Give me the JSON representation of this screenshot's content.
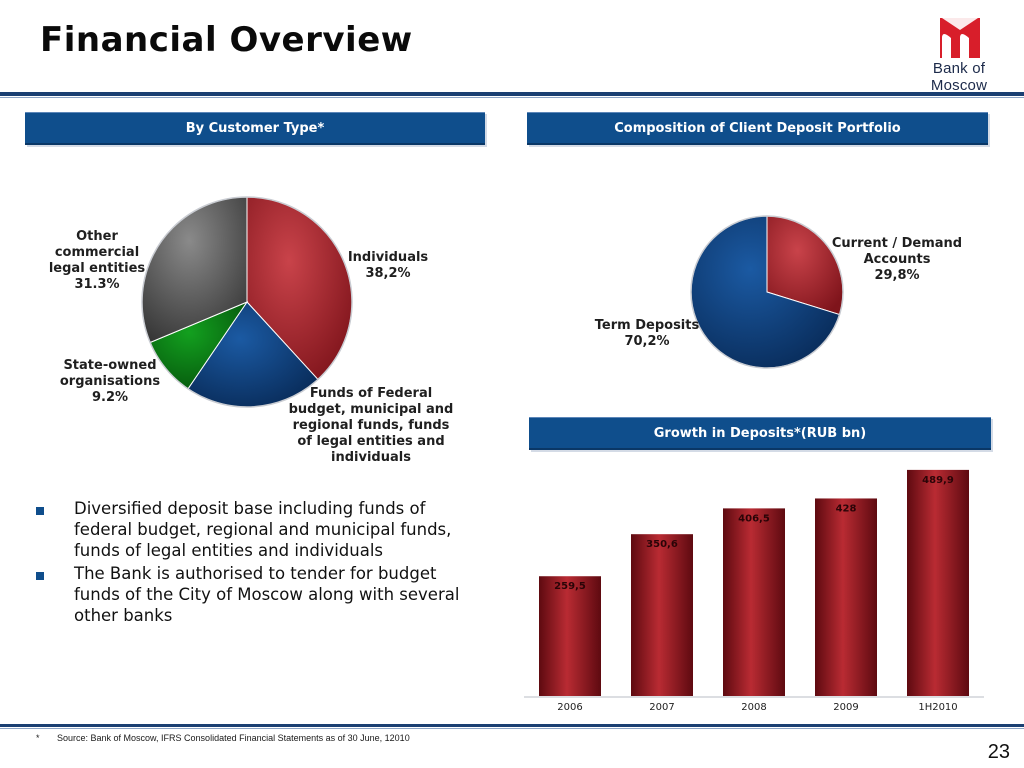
{
  "title": "Financial Overview",
  "logo": {
    "text": "Bank of Moscow",
    "color": "#d81e2a"
  },
  "banners": {
    "customer_type": "By Customer Type*",
    "deposit_portfolio": "Composition of Client Deposit Portfolio",
    "growth": "Growth in Deposits*(RUB bn)"
  },
  "pie1": {
    "labels": {
      "individuals": [
        "Individuals",
        "38,2%"
      ],
      "funds": [
        "Funds of Federal",
        "budget, municipal and",
        "regional funds, funds",
        "of legal entities and",
        "individuals"
      ],
      "state_owned": [
        "State-owned",
        "organisations",
        "9.2%"
      ],
      "other": [
        "Other",
        "commercial",
        "legal entities",
        "31.3%"
      ]
    }
  },
  "pie2": {
    "labels": {
      "current": [
        "Current / Demand",
        "Accounts",
        "29,8%"
      ],
      "term": [
        "Term Deposits",
        "70,2%"
      ]
    }
  },
  "chart_data": [
    {
      "type": "pie",
      "title": "By Customer Type*",
      "slices": [
        {
          "label": "Individuals",
          "value": 38.2,
          "color": "#a8282e"
        },
        {
          "label": "Funds of Federal budget, municipal and regional funds, funds of legal entities and individuals",
          "value": 21.3,
          "color": "#0f3d78"
        },
        {
          "label": "State-owned organisations",
          "value": 9.2,
          "color": "#0a7a12"
        },
        {
          "label": "Other commercial legal entities",
          "value": 31.3,
          "color": "#5a5a5a"
        }
      ]
    },
    {
      "type": "pie",
      "title": "Composition of Client Deposit Portfolio",
      "slices": [
        {
          "label": "Current / Demand Accounts",
          "value": 29.8,
          "color": "#a8282e"
        },
        {
          "label": "Term Deposits",
          "value": 70.2,
          "color": "#0f3d78"
        }
      ]
    },
    {
      "type": "bar",
      "title": "Growth in Deposits*(RUB bn)",
      "categories": [
        "2006",
        "2007",
        "2008",
        "2009",
        "1H2010"
      ],
      "values": [
        259.5,
        350.6,
        406.5,
        428,
        489.9
      ],
      "value_labels": [
        "259,5",
        "350,6",
        "406,5",
        "428",
        "489,9"
      ],
      "ylim": [
        0,
        520
      ],
      "color": "#9c1f27"
    }
  ],
  "bullets": [
    "Diversified deposit base including funds of federal budget, regional and municipal  funds, funds of legal entities and individuals",
    "The Bank is authorised to tender for budget funds of the City of Moscow along with several other banks"
  ],
  "footnote": {
    "marker": "*",
    "text": "Source: Bank of Moscow, IFRS Consolidated Financial Statements as of 30 June, 12010"
  },
  "page_number": "23"
}
